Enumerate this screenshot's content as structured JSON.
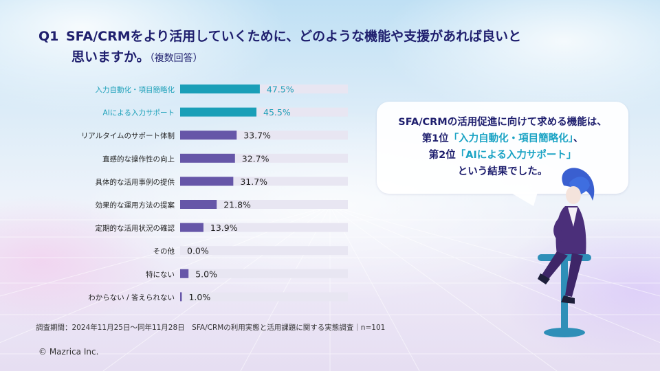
{
  "header": {
    "q_number": "Q1",
    "title_line1": "SFA/CRMをより活用していくために、どのような機能や支援があれば良いと",
    "title_line2": "思いますか。",
    "title_note": "（複数回答）"
  },
  "chart_data": {
    "type": "bar",
    "orientation": "horizontal",
    "categories": [
      "入力自動化・項目簡略化",
      "AIによる入力サポート",
      "リアルタイムのサポート体制",
      "直感的な操作性の向上",
      "具体的な活用事例の提供",
      "効果的な運用方法の提案",
      "定期的な活用状況の確認",
      "その他",
      "特にない",
      "わからない / 答えられない"
    ],
    "values": [
      47.5,
      45.5,
      33.7,
      32.7,
      31.7,
      21.8,
      13.9,
      0.0,
      5.0,
      1.0
    ],
    "value_labels": [
      "47.5%",
      "45.5%",
      "33.7%",
      "32.7%",
      "31.7%",
      "21.8%",
      "13.9%",
      "0.0%",
      "5.0%",
      "1.0%"
    ],
    "highlighted": [
      true,
      true,
      false,
      false,
      false,
      false,
      false,
      false,
      false,
      false
    ],
    "xlim": [
      0,
      100
    ],
    "grid": false,
    "colors": {
      "highlight": "#1a9fb8",
      "normal": "#6656a8",
      "track": "#e8e6f2",
      "highlight_text": "#1a9fb8",
      "normal_text": "#222222"
    }
  },
  "callout": {
    "line1": "SFA/CRMの活用促進に向けて求める機能は、",
    "line2_pre": "第1位",
    "line2_hl": "「入力自動化・項目簡略化」",
    "line2_post": "、",
    "line3_pre": "第2位",
    "line3_hl": "「AIによる入力サポート」",
    "line4": "という結果でした。"
  },
  "footer": {
    "note": "調査期間：2024年11月25日～同年11月28日　SFA/CRMの利用実態と活用課題に関する実態調査｜n=101",
    "copyright": "© Mazrica Inc."
  }
}
